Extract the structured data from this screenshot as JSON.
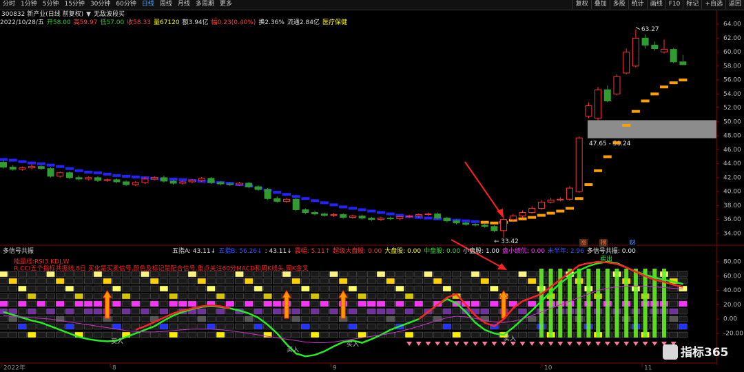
{
  "toolbar": {
    "left": [
      "分时",
      "1分钟",
      "5分钟",
      "15分钟",
      "30分钟",
      "60分钟",
      "日线",
      "周线",
      "月线",
      "多周期",
      "更多"
    ],
    "active": "日线",
    "right": [
      "复权",
      "叠加",
      "多股",
      "统计",
      "画线",
      "F10",
      "标记",
      "+自选",
      "返回"
    ]
  },
  "header": {
    "stock": "300832 新产业(日线 前复权)",
    "strategy": "无敌波段买",
    "quote": [
      {
        "text": "2022/10/28/五",
        "color": "#dddddd"
      },
      {
        "text": "开58.00",
        "color": "#33cc33"
      },
      {
        "text": "高59.97",
        "color": "#ff4040"
      },
      {
        "text": "低57.00",
        "color": "#33cc33"
      },
      {
        "text": "收58.33",
        "color": "#ff4040"
      },
      {
        "text": "量67120",
        "color": "#ffff00"
      },
      {
        "text": "额3.94亿",
        "color": "#dddddd"
      },
      {
        "text": "幅0.23(0.40%)",
        "color": "#ff4040"
      },
      {
        "text": "换2.36%",
        "color": "#dddddd"
      },
      {
        "text": "流通2.84亿",
        "color": "#dddddd"
      },
      {
        "text": "医疗保健",
        "color": "#ffff00"
      }
    ]
  },
  "chart_data": [
    {
      "type": "candlestick",
      "ylim": [
        33,
        65
      ],
      "yticks": [
        {
          "value": 34,
          "label": "34.00"
        },
        {
          "value": 36,
          "label": "36.00"
        },
        {
          "value": 38,
          "label": "38.00"
        },
        {
          "value": 40,
          "label": "40.00"
        },
        {
          "value": 42,
          "label": "42.00"
        },
        {
          "value": 44,
          "label": "44.00"
        },
        {
          "value": 46,
          "label": "46.00"
        },
        {
          "value": 48,
          "label": "48.00"
        },
        {
          "value": 50,
          "label": "50.00"
        },
        {
          "value": 52,
          "label": "52.00"
        },
        {
          "value": 54,
          "label": "54.00"
        },
        {
          "value": 56,
          "label": "56.00"
        },
        {
          "value": 58,
          "label": "58.00"
        },
        {
          "value": 60,
          "label": "60.00"
        },
        {
          "value": 62,
          "label": "62.00"
        },
        {
          "value": 64,
          "label": "64.00"
        }
      ],
      "up_color": "#ff3232",
      "down_color": "#2e9c2e",
      "open": [
        44.2,
        43.5,
        43.2,
        43.4,
        43.6,
        43.3,
        42.2,
        42.7,
        42.0,
        41.8,
        42.0,
        41.6,
        41.7,
        41.4,
        41.0,
        41.3,
        41.8,
        42.0,
        41.5,
        41.2,
        41.4,
        41.6,
        41.9,
        41.3,
        41.1,
        41.0,
        41.2,
        40.7,
        40.3,
        39.0,
        38.6,
        38.9,
        37.4,
        37.0,
        36.8,
        36.6,
        36.7,
        36.3,
        36.5,
        36.2,
        36.0,
        36.2,
        36.1,
        36.4,
        36.5,
        36.7,
        36.8,
        36.2,
        35.8,
        35.5,
        35.3,
        35.2,
        35.0,
        34.4,
        36.0,
        36.5,
        37.0,
        37.6,
        38.5,
        38.8,
        38.9,
        40.0,
        50.8,
        50.5,
        54.6,
        54.0,
        57.0,
        58.0,
        62.0,
        61.0,
        60.0,
        60.4,
        58.6
      ],
      "high": [
        44.5,
        43.8,
        43.6,
        43.9,
        43.8,
        43.5,
        42.9,
        42.9,
        42.3,
        42.2,
        42.2,
        41.9,
        41.9,
        41.6,
        41.5,
        42.1,
        42.2,
        42.3,
        41.7,
        41.6,
        41.8,
        42.1,
        42.1,
        41.5,
        41.3,
        41.4,
        41.4,
        40.9,
        40.5,
        39.3,
        39.1,
        39.1,
        37.6,
        37.3,
        37.0,
        36.9,
        36.9,
        36.7,
        36.7,
        36.4,
        36.4,
        36.4,
        36.6,
        36.7,
        36.9,
        37.0,
        37.0,
        36.4,
        36.0,
        35.7,
        35.5,
        35.4,
        35.2,
        36.3,
        36.8,
        37.3,
        37.9,
        38.8,
        39.1,
        39.2,
        40.8,
        47.9,
        52.8,
        55.0,
        55.2,
        56.8,
        60.5,
        63.27,
        62.5,
        61.5,
        61.8,
        60.6,
        59.6
      ],
      "low": [
        43.3,
        43.0,
        43.0,
        43.2,
        43.1,
        42.0,
        42.0,
        41.8,
        41.6,
        41.6,
        41.4,
        41.4,
        41.2,
        40.8,
        40.8,
        41.1,
        41.6,
        41.3,
        41.0,
        41.0,
        41.2,
        41.4,
        41.1,
        40.9,
        40.8,
        40.8,
        40.5,
        40.1,
        38.8,
        38.4,
        38.4,
        37.2,
        36.8,
        36.6,
        36.4,
        36.4,
        36.1,
        36.1,
        36.0,
        35.8,
        35.8,
        35.9,
        35.9,
        36.2,
        36.3,
        36.5,
        36.0,
        35.6,
        35.3,
        35.1,
        35.0,
        34.8,
        34.2,
        33.42,
        35.8,
        36.3,
        36.8,
        37.4,
        38.3,
        38.6,
        38.7,
        39.8,
        50.5,
        50.2,
        52.8,
        53.8,
        56.8,
        57.8,
        60.5,
        60.2,
        59.8,
        58.4,
        58.2
      ],
      "close": [
        43.5,
        43.2,
        43.4,
        43.6,
        43.3,
        42.2,
        42.7,
        42.0,
        41.8,
        42.0,
        41.6,
        41.7,
        41.4,
        41.0,
        41.3,
        41.8,
        42.0,
        41.5,
        41.2,
        41.4,
        41.6,
        41.9,
        41.3,
        41.1,
        41.0,
        41.2,
        40.7,
        40.3,
        39.0,
        38.6,
        38.9,
        37.4,
        37.0,
        36.8,
        36.6,
        36.7,
        36.3,
        36.5,
        36.2,
        36.0,
        36.2,
        36.1,
        36.4,
        36.5,
        36.7,
        36.8,
        36.2,
        35.8,
        35.5,
        35.3,
        35.2,
        35.0,
        34.4,
        36.0,
        36.5,
        37.0,
        37.6,
        38.5,
        38.8,
        38.9,
        40.5,
        47.7,
        52.3,
        54.6,
        53.0,
        56.5,
        60.0,
        62.0,
        61.0,
        60.5,
        60.4,
        58.6,
        58.2
      ],
      "bands": [
        {
          "color": "#2323ff",
          "values": [
            44.6,
            44.5,
            44.3,
            44.1,
            44.0,
            43.8,
            43.6,
            43.3,
            43.0,
            42.8,
            42.7,
            42.5,
            42.3,
            42.2,
            42.1,
            42.0,
            41.9,
            41.8,
            41.8,
            41.7,
            41.6,
            41.5,
            41.4,
            41.3,
            41.2,
            41.0,
            40.8,
            40.5,
            40.2,
            39.9,
            39.6,
            39.3,
            39.0,
            38.7,
            38.4,
            38.1,
            37.8,
            37.6,
            37.4,
            37.2,
            37.0,
            36.8,
            36.6,
            36.4,
            36.3,
            36.2,
            36.1,
            36.0,
            35.9,
            35.8,
            35.7,
            null,
            null,
            null,
            null,
            null,
            null,
            null,
            null,
            null,
            null,
            null,
            null,
            null,
            null,
            null,
            null,
            null,
            null,
            null,
            null,
            null,
            null
          ]
        },
        {
          "color": "#ff9f00",
          "values": [
            null,
            null,
            null,
            null,
            null,
            null,
            null,
            null,
            null,
            null,
            null,
            null,
            null,
            null,
            null,
            null,
            null,
            null,
            null,
            null,
            null,
            null,
            null,
            null,
            null,
            null,
            null,
            null,
            null,
            null,
            null,
            null,
            null,
            null,
            null,
            null,
            null,
            null,
            null,
            null,
            null,
            null,
            null,
            null,
            null,
            null,
            null,
            null,
            null,
            null,
            null,
            35.6,
            35.5,
            35.6,
            35.9,
            36.1,
            36.3,
            36.6,
            36.9,
            37.2,
            37.6,
            39.0,
            41.0,
            43.0,
            45.0,
            47.0,
            49.5,
            51.5,
            53.0,
            54.0,
            55.0,
            55.6,
            56.0
          ]
        }
      ],
      "zone": {
        "low": 47.65,
        "high": 50.24,
        "label": "47.65 - 50.24"
      },
      "event_markers": [
        "涨",
        "榜",
        "财"
      ]
    },
    {
      "type": "indicator",
      "title": "多信号共振",
      "ylim": [
        -55,
        90
      ],
      "yticks": [
        {
          "value": 80,
          "label": "80.00"
        },
        {
          "value": 60,
          "label": "60.00"
        },
        {
          "value": 40,
          "label": "40.00"
        },
        {
          "value": 20,
          "label": "20.00"
        },
        {
          "value": 0,
          "label": "0.00"
        },
        {
          "value": -20,
          "label": "-20.00"
        }
      ],
      "readouts": [
        {
          "text": "五指A: 43.11↓",
          "color": "#dddddd"
        },
        {
          "text": "五指B: 56.26↓",
          "color": "#3355ff"
        },
        {
          "text": ": 43.11↓",
          "color": "#dddddd"
        },
        {
          "text": "震幅: 5.11↑",
          "color": "#ff3333"
        },
        {
          "text": "超级大盘股: 0.00",
          "color": "#ff3333"
        },
        {
          "text": "大盘股: 0.00",
          "color": "#ffff00"
        },
        {
          "text": "中盘股: 0.00",
          "color": "#33dd33"
        },
        {
          "text": "小盘股: 1.00",
          "color": "#eeeeee"
        },
        {
          "text": "盘小绩优: 0.00",
          "color": "#ff33ff"
        },
        {
          "text": "未半年: 2.96",
          "color": "#3355ff"
        },
        {
          "text": "多信号共振: 0.00",
          "color": "#eeeeee"
        }
      ],
      "notes": [
        "能量线:RSI3 KDJ,W",
        "R,CCI五个指标共振线,8日 买化是买卖信号,颜色及标记是配合信号,重点关注60分MACD和周K线头,周K金叉"
      ],
      "series": [
        {
          "color": "#22ee22",
          "values": [
            10,
            6,
            2,
            -2,
            -5,
            -10,
            -15,
            -20,
            -25,
            -28,
            -30,
            -31,
            -30,
            -25,
            -20,
            -15,
            -10,
            -2,
            5,
            10,
            14,
            17,
            18,
            17,
            15,
            12,
            8,
            2,
            -8,
            -20,
            -35,
            -48,
            -52,
            -50,
            -45,
            -38,
            -32,
            -30,
            -33,
            -28,
            -22,
            -15,
            -10,
            -5,
            0,
            10,
            20,
            28,
            22,
            10,
            -5,
            -15,
            -20,
            -22,
            -12,
            0,
            12,
            25,
            38,
            50,
            60,
            68,
            74,
            78,
            80,
            78,
            72,
            66,
            62,
            58,
            55,
            52,
            49
          ]
        },
        {
          "color": "#ff2222",
          "values": [
            null,
            null,
            null,
            null,
            null,
            null,
            null,
            null,
            null,
            null,
            null,
            null,
            null,
            null,
            -15,
            -10,
            -4,
            2,
            8,
            12,
            15,
            18,
            19,
            18,
            15,
            null,
            null,
            null,
            null,
            null,
            null,
            null,
            null,
            null,
            null,
            null,
            null,
            null,
            null,
            null,
            null,
            null,
            null,
            null,
            0,
            10,
            20,
            30,
            35,
            20,
            5,
            -5,
            -10,
            0,
            15,
            25,
            30,
            35,
            45,
            55,
            65,
            75,
            78,
            80,
            79,
            77,
            72,
            66,
            60,
            55,
            52,
            48,
            45
          ]
        },
        {
          "color": "#cc33cc",
          "values": [
            5,
            4,
            3,
            2,
            1,
            0,
            -2,
            -4,
            -6,
            -8,
            -10,
            -12,
            -14,
            -16,
            -17,
            -18,
            -18,
            -17,
            -16,
            -15,
            -14,
            -14,
            -14,
            -15,
            -16,
            -18,
            -20,
            -22,
            -24,
            -26,
            -28,
            -30,
            -32,
            -33,
            -33,
            -32,
            -30,
            -28,
            -26,
            -24,
            -22,
            -20,
            -17,
            -14,
            -10,
            -6,
            -2,
            2,
            4,
            3,
            1,
            -2,
            -4,
            -5,
            -3,
            0,
            5,
            10,
            15,
            20,
            25,
            30,
            35,
            40,
            43,
            45,
            46,
            46,
            46,
            45,
            44,
            43,
            42
          ]
        }
      ],
      "signals": [
        "买入",
        "买入",
        "买入",
        "买入",
        "卖出"
      ]
    }
  ],
  "x_axis_labels": [
    "2022年",
    "8",
    "9",
    "10",
    "11"
  ],
  "watermark": "指标365"
}
